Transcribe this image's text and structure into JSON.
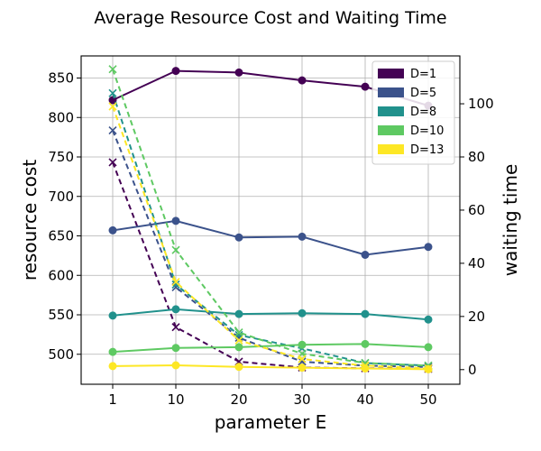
{
  "chart_data": {
    "type": "line",
    "title": "Average Resource Cost and Waiting Time",
    "xlabel": "parameter E",
    "ylabel_left": "resource cost",
    "ylabel_right": "waiting time",
    "x_ticks": [
      "1",
      "10",
      "20",
      "30",
      "40",
      "50"
    ],
    "y_left_ticks": [
      500,
      550,
      600,
      650,
      700,
      750,
      800,
      850
    ],
    "y_right_ticks": [
      0,
      20,
      40,
      60,
      80,
      100
    ],
    "ylim_left": [
      462,
      878
    ],
    "ylim_right": [
      -5.5,
      118
    ],
    "grid": true,
    "legend_position": "top-right",
    "legend": [
      "D=1",
      "D=5",
      "D=8",
      "D=10",
      "D=13"
    ],
    "series": [
      {
        "name": "D=1",
        "color": "#440154",
        "resource_cost": [
          822,
          859,
          857,
          847,
          839,
          815
        ],
        "waiting_time": [
          78,
          16,
          3,
          0.8,
          0.5,
          0.3
        ]
      },
      {
        "name": "D=5",
        "color": "#3b528b",
        "resource_cost": [
          657,
          669,
          648,
          649,
          626,
          636
        ],
        "waiting_time": [
          90,
          31,
          12,
          3,
          1.5,
          1
        ]
      },
      {
        "name": "D=8",
        "color": "#21918c",
        "resource_cost": [
          549,
          557,
          551,
          552,
          551,
          544
        ],
        "waiting_time": [
          104,
          32,
          13,
          8,
          2.5,
          1.5
        ]
      },
      {
        "name": "D=10",
        "color": "#5ec962",
        "resource_cost": [
          503,
          508,
          509,
          512,
          513,
          509
        ],
        "waiting_time": [
          113,
          45,
          14,
          6,
          2.5,
          1.5
        ]
      },
      {
        "name": "D=13",
        "color": "#fde725",
        "resource_cost": [
          485,
          486,
          484,
          483,
          482,
          481
        ],
        "waiting_time": [
          99,
          33,
          11,
          4,
          1.5,
          0.5
        ]
      }
    ]
  }
}
